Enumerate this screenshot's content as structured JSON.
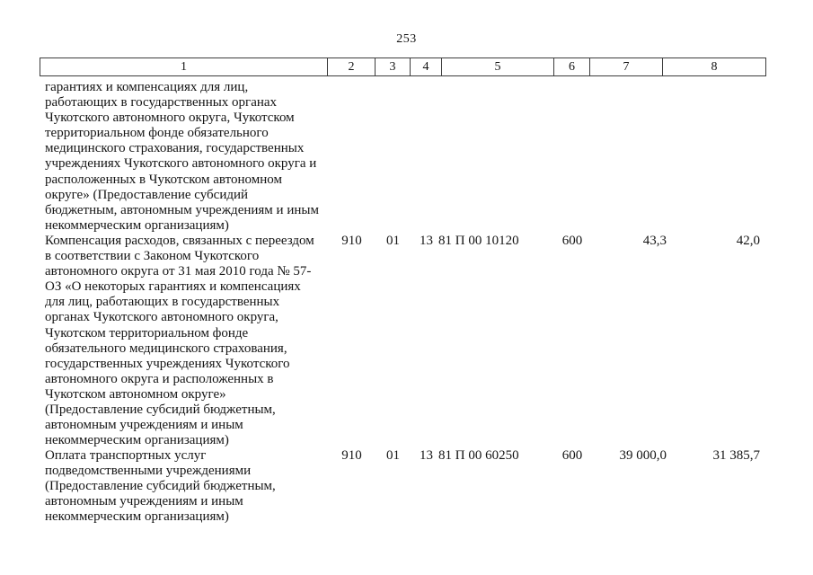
{
  "page": {
    "number": "253"
  },
  "table": {
    "header": [
      "1",
      "2",
      "3",
      "4",
      "5",
      "6",
      "7",
      "8"
    ],
    "rows": [
      {
        "name_lines": [
          "гарантиях и компенсациях для лиц,",
          "работающих в государственных органах",
          "Чукотского автономного округа, Чукотском",
          "территориальном фонде обязательного",
          "медицинского страхования, государственных",
          "учреждениях Чукотского автономного округа и",
          "расположенных в Чукотском автономном",
          "округе» (Предоставление субсидий",
          "бюджетным, автономным учреждениям и иным",
          "некоммерческим организациям)"
        ]
      },
      {
        "name_lines": [
          "Компенсация расходов, связанных с переездом",
          "в соответствии с Законом Чукотского",
          "автономного округа от 31 мая 2010 года № 57-",
          "ОЗ «О некоторых гарантиях и компенсациях",
          "для лиц, работающих в государственных",
          "органах Чукотского автономного округа,",
          "Чукотском территориальном фонде",
          "обязательного медицинского страхования,",
          "государственных учреждениях Чукотского",
          "автономного округа и расположенных в",
          "Чукотском автономном округе»",
          "(Предоставление субсидий бюджетным,",
          "автономным учреждениям и иным",
          "некоммерческим организациям)"
        ],
        "grbs": "910",
        "section": "01",
        "subsection": "13",
        "target_article": "81 П 00 10120",
        "expense_type": "600",
        "approved": "43,3",
        "executed": "42,0"
      },
      {
        "name_lines": [
          "Оплата транспортных услуг",
          "подведомственными учреждениями",
          "(Предоставление субсидий бюджетным,",
          "автономным учреждениям и иным",
          "некоммерческим организациям)"
        ],
        "grbs": "910",
        "section": "01",
        "subsection": "13",
        "target_article": "81 П 00 60250",
        "expense_type": "600",
        "approved": "39 000,0",
        "executed": "31 385,7"
      }
    ]
  }
}
